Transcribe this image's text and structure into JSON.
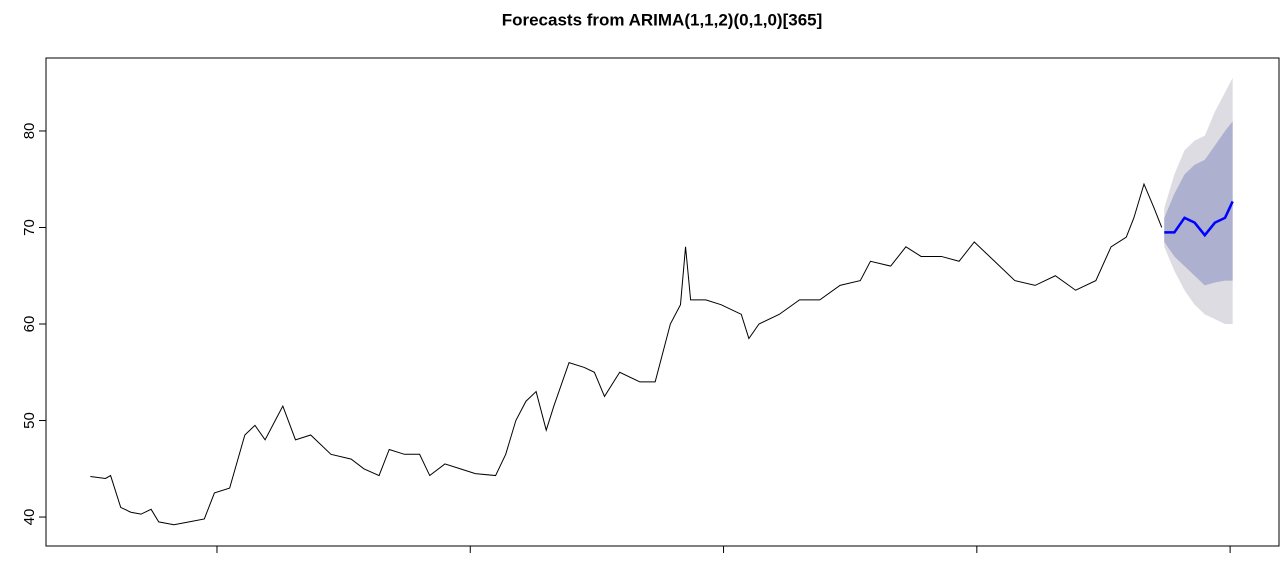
{
  "chart_data": {
    "type": "line",
    "title": "Forecasts from ARIMA(1,1,2)(0,1,0)[365]",
    "xlim": [
      1.325,
      6.193
    ],
    "ylim": [
      37.0,
      87.56
    ],
    "xticks": [
      2,
      3,
      4,
      5,
      6
    ],
    "yticks": [
      40,
      50,
      60,
      70,
      80
    ],
    "color": "#000000",
    "x": [
      1.5,
      1.56,
      1.58,
      1.62,
      1.66,
      1.7,
      1.74,
      1.77,
      1.83,
      1.89,
      1.95,
      1.99,
      2.05,
      2.11,
      2.15,
      2.19,
      2.23,
      2.26,
      2.31,
      2.37,
      2.45,
      2.53,
      2.58,
      2.64,
      2.68,
      2.74,
      2.8,
      2.84,
      2.9,
      2.96,
      3.02,
      3.1,
      3.14,
      3.18,
      3.22,
      3.26,
      3.3,
      3.33,
      3.39,
      3.45,
      3.49,
      3.53,
      3.59,
      3.67,
      3.73,
      3.79,
      3.83,
      3.85,
      3.87,
      3.93,
      3.99,
      4.07,
      4.1,
      4.14,
      4.22,
      4.3,
      4.38,
      4.46,
      4.54,
      4.58,
      4.66,
      4.72,
      4.78,
      4.86,
      4.93,
      4.99,
      5.07,
      5.15,
      5.23,
      5.31,
      5.39,
      5.47,
      5.53,
      5.59,
      5.62,
      5.66,
      5.7,
      5.73
    ],
    "values": [
      44.2,
      44.0,
      44.3,
      41.0,
      40.5,
      40.3,
      40.8,
      39.5,
      39.2,
      39.5,
      39.8,
      42.5,
      43.0,
      48.5,
      49.5,
      48.0,
      50.0,
      51.5,
      48.0,
      48.5,
      46.5,
      46.0,
      45.0,
      44.3,
      47.0,
      46.5,
      46.5,
      44.3,
      45.5,
      45.0,
      44.5,
      44.3,
      46.5,
      50.0,
      52.0,
      53.0,
      49.0,
      51.5,
      56.0,
      55.5,
      55.0,
      52.5,
      55.0,
      54.0,
      54.0,
      60.0,
      62.0,
      68.0,
      62.5,
      62.5,
      62.0,
      61.0,
      58.5,
      60.0,
      61.0,
      62.5,
      62.5,
      64.0,
      64.5,
      66.5,
      66.0,
      68.0,
      67.0,
      67.0,
      66.5,
      68.5,
      66.5,
      64.5,
      64.0,
      65.0,
      63.5,
      64.5,
      68.0,
      69.0,
      71.0,
      74.5,
      72.0,
      70.0
    ],
    "forecast": {
      "color": "#0000ff",
      "x": [
        5.74,
        5.78,
        5.82,
        5.86,
        5.9,
        5.94,
        5.98,
        6.01
      ],
      "mean": [
        69.5,
        69.5,
        71.0,
        70.5,
        69.2,
        70.5,
        71.0,
        72.7
      ]
    },
    "bands": [
      {
        "color": "#dcdce2",
        "lower": [
          68.0,
          65.5,
          63.5,
          62.0,
          61.0,
          60.5,
          60.0,
          60.0
        ],
        "upper": [
          72.0,
          75.5,
          78.0,
          79.0,
          79.5,
          82.0,
          84.0,
          85.5
        ]
      },
      {
        "color": "#adb0cf",
        "lower": [
          68.5,
          67.0,
          66.0,
          65.0,
          64.0,
          64.3,
          64.5,
          64.5
        ],
        "upper": [
          71.0,
          73.5,
          75.5,
          76.5,
          77.0,
          78.5,
          80.0,
          81.0
        ]
      }
    ]
  }
}
